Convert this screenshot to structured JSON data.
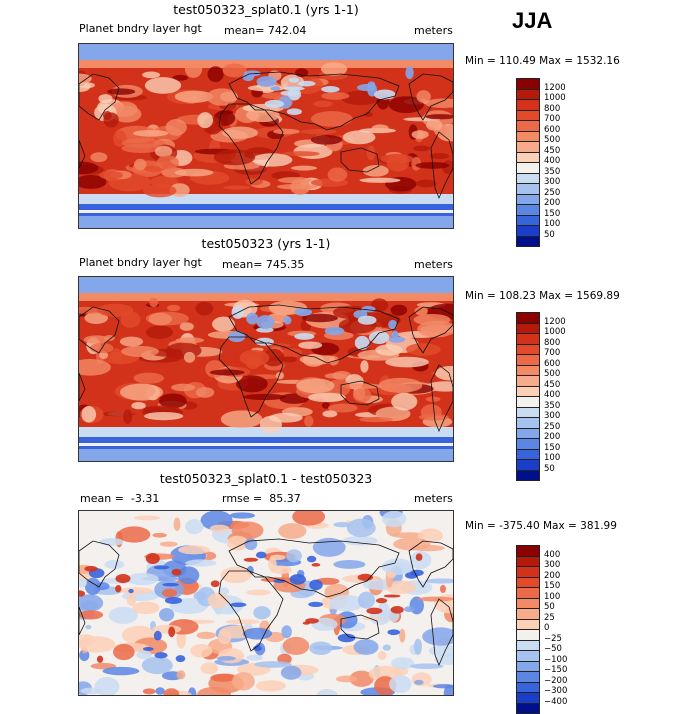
{
  "season": "JJA",
  "panels": [
    {
      "title": "test050323_splat0.1 (yrs 1-1)",
      "left_label": "Planet bndry layer hgt",
      "mid_label": "mean= 742.04",
      "right_label": "meters",
      "minmax": "Min = 110.49 Max = 1532.16",
      "scale": "absolute"
    },
    {
      "title": "test050323 (yrs 1-1)",
      "left_label": "Planet bndry layer hgt",
      "mid_label": "mean= 745.35",
      "right_label": "meters",
      "minmax": "Min = 108.23 Max = 1569.89",
      "scale": "absolute"
    },
    {
      "title": "test050323_splat0.1 - test050323",
      "left_label": "mean =  -3.31",
      "mid_label": "rmse =  85.37",
      "right_label": "meters",
      "minmax": "Min = -375.40 Max = 381.99",
      "scale": "difference"
    }
  ],
  "legends": {
    "absolute": {
      "labels": [
        "1200",
        "1000",
        "800",
        "700",
        "600",
        "500",
        "450",
        "400",
        "350",
        "300",
        "250",
        "200",
        "150",
        "100",
        "50"
      ],
      "colors": [
        "#8b0000",
        "#b41a0a",
        "#d2321a",
        "#e24a2a",
        "#ec6a48",
        "#f28a66",
        "#f7ab8a",
        "#fbd0b6",
        "#f4f0ee",
        "#c9dcf2",
        "#a6c2ee",
        "#84a6ea",
        "#5c86e4",
        "#3763dc",
        "#1a3ec8",
        "#00108c"
      ]
    },
    "difference": {
      "labels": [
        "400",
        "300",
        "200",
        "150",
        "100",
        "50",
        "25",
        "0",
        "-25",
        "-50",
        "-100",
        "-150",
        "-200",
        "-300",
        "-400"
      ],
      "colors": [
        "#8b0000",
        "#b41a0a",
        "#d2321a",
        "#e24a2a",
        "#ec6a48",
        "#f28a66",
        "#f7ab8a",
        "#fbd0b6",
        "#f4f0ee",
        "#c9dcf2",
        "#a6c2ee",
        "#84a6ea",
        "#5c86e4",
        "#3763dc",
        "#1a3ec8",
        "#00108c"
      ]
    }
  }
}
